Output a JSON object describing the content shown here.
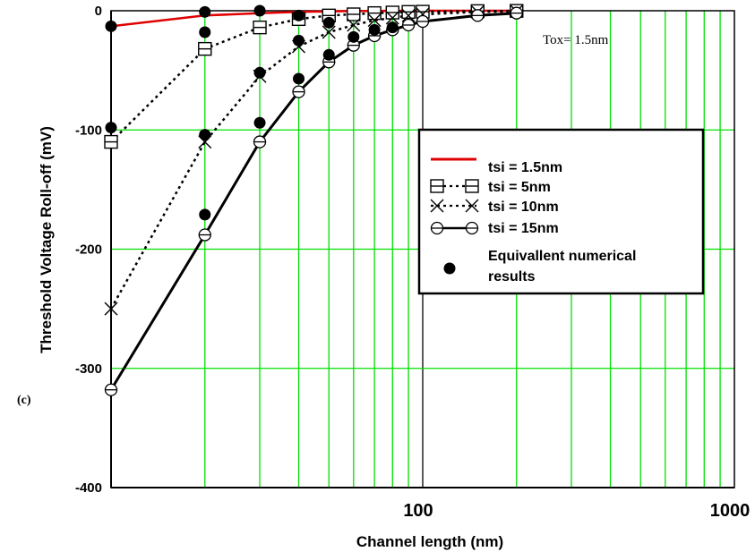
{
  "chart_data": {
    "type": "line",
    "xlabel": "Channel length (nm)",
    "ylabel": "Threshold Voltage Roll-off (mV)",
    "x_scale": "log",
    "xlim": [
      10,
      1000
    ],
    "ylim": [
      -400,
      0
    ],
    "x_tick_labels": [
      "100",
      "1000"
    ],
    "y_ticks": [
      0,
      -100,
      -200,
      -300,
      -400
    ],
    "y_tick_labels": [
      "0",
      "-100",
      "-200",
      "-300",
      "-400"
    ],
    "grid": true,
    "grid_color": "#00e000",
    "annotation": "Tox= 1.5nm",
    "panel_label": "(c)",
    "legend_position": "center-right",
    "series": [
      {
        "name": "tsi = 1.5nm",
        "color": "#e00000",
        "line": "solid",
        "marker": "none",
        "x": [
          10,
          20,
          30,
          40,
          50,
          60,
          70,
          80,
          90,
          100,
          150,
          200
        ],
        "y": [
          -13,
          -4,
          -2,
          -1,
          -0.5,
          -0.3,
          -0.2,
          -0.1,
          -0.1,
          0,
          0,
          0
        ]
      },
      {
        "name": "tsi = 5nm",
        "color": "#000000",
        "line": "dotted",
        "marker": "boxed-square",
        "x": [
          10,
          20,
          30,
          40,
          50,
          60,
          70,
          80,
          90,
          100,
          150,
          200
        ],
        "y": [
          -110,
          -32,
          -14,
          -7,
          -4,
          -3,
          -2,
          -1.5,
          -1,
          -0.8,
          -0.3,
          -0.1
        ]
      },
      {
        "name": "tsi = 10nm",
        "color": "#000000",
        "line": "dotted",
        "marker": "x",
        "x": [
          10,
          20,
          30,
          40,
          50,
          60,
          70,
          80,
          90,
          100,
          150,
          200
        ],
        "y": [
          -250,
          -110,
          -55,
          -30,
          -18,
          -12,
          -8,
          -6,
          -4,
          -3,
          -1,
          -0.5
        ]
      },
      {
        "name": "tsi = 15nm",
        "color": "#000000",
        "line": "solid",
        "marker": "circle-line",
        "x": [
          10,
          20,
          30,
          40,
          50,
          60,
          70,
          80,
          90,
          100,
          150,
          200
        ],
        "y": [
          -318,
          -188,
          -110,
          -68,
          -43,
          -29,
          -21,
          -16,
          -12,
          -9,
          -4,
          -2
        ]
      }
    ],
    "numerical": {
      "name": "Equivallent numerical results",
      "marker": "filled-circle",
      "color": "#000000",
      "points": [
        {
          "x": 10,
          "y": -13
        },
        {
          "x": 10,
          "y": -98
        },
        {
          "x": 20,
          "y": -1
        },
        {
          "x": 20,
          "y": -18
        },
        {
          "x": 20,
          "y": -104
        },
        {
          "x": 20,
          "y": -171
        },
        {
          "x": 30,
          "y": 0
        },
        {
          "x": 30,
          "y": -52
        },
        {
          "x": 30,
          "y": -94
        },
        {
          "x": 40,
          "y": -4
        },
        {
          "x": 40,
          "y": -25
        },
        {
          "x": 40,
          "y": -57
        },
        {
          "x": 50,
          "y": -10
        },
        {
          "x": 50,
          "y": -37
        },
        {
          "x": 60,
          "y": -22
        },
        {
          "x": 70,
          "y": -16
        },
        {
          "x": 80,
          "y": -14
        }
      ]
    },
    "legend": {
      "entries": [
        {
          "label": "tsi = 1.5nm",
          "sample": "red-line"
        },
        {
          "label": "tsi = 5nm",
          "sample": "dotted-boxed-square"
        },
        {
          "label": "tsi = 10nm",
          "sample": "dotted-x"
        },
        {
          "label": "tsi = 15nm",
          "sample": "solid-circle"
        }
      ],
      "numerical_label_lines": [
        "Equivallent numerical",
        "results"
      ]
    }
  }
}
